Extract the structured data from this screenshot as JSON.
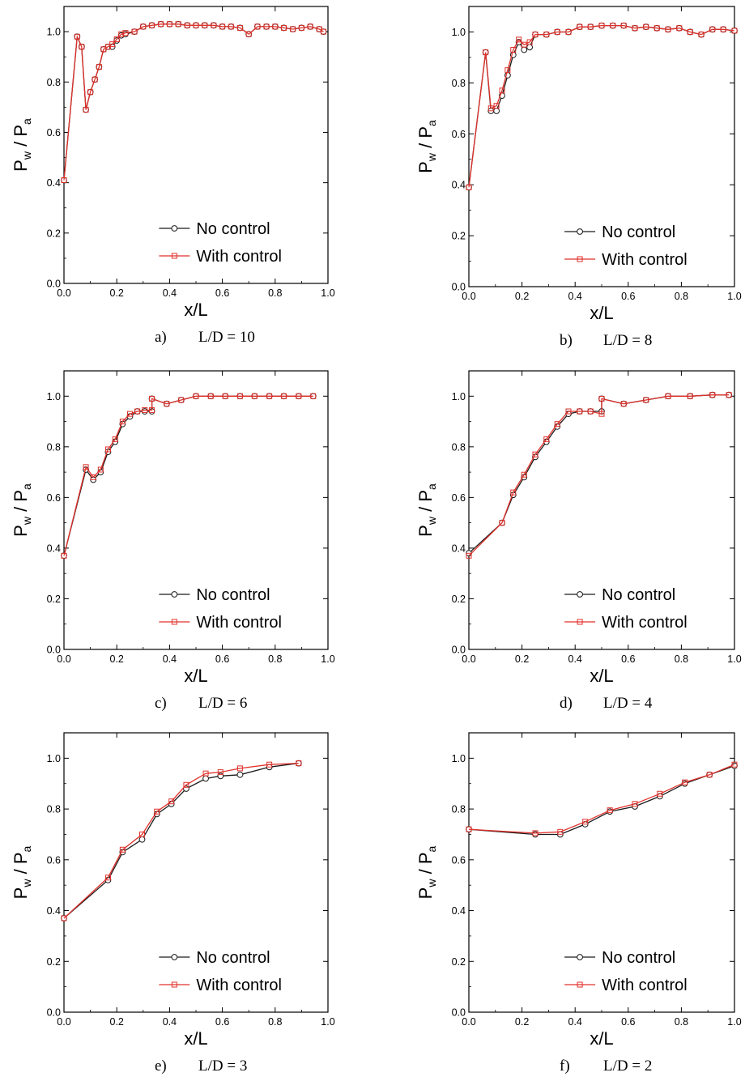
{
  "chart_data": [
    {
      "type": "line",
      "caption_letter": "a)",
      "caption_text": "L/D = 10",
      "xlabel": "x/L",
      "ylabel_main": "P",
      "ylabel_sub1": "w",
      "ylabel_sep": " / ",
      "ylabel_main2": "P",
      "ylabel_sub2": "a",
      "xlim": [
        0,
        1
      ],
      "ylim": [
        0,
        1.1
      ],
      "xticks": [
        "0.0",
        "0.2",
        "0.4",
        "0.6",
        "0.8",
        "1.0"
      ],
      "yticks": [
        "0.0",
        "0.2",
        "0.4",
        "0.6",
        "0.8",
        "1.0"
      ],
      "legend": [
        "No control",
        "With control"
      ],
      "series": [
        {
          "name": "No control",
          "x": [
            0.0,
            0.05,
            0.067,
            0.083,
            0.1,
            0.117,
            0.133,
            0.15,
            0.167,
            0.183,
            0.2,
            0.217,
            0.233,
            0.267,
            0.3,
            0.333,
            0.367,
            0.4,
            0.433,
            0.467,
            0.5,
            0.533,
            0.567,
            0.6,
            0.633,
            0.667,
            0.7,
            0.733,
            0.767,
            0.8,
            0.833,
            0.867,
            0.9,
            0.933,
            0.967,
            0.983
          ],
          "y": [
            0.41,
            0.98,
            0.94,
            0.69,
            0.76,
            0.81,
            0.86,
            0.93,
            0.94,
            0.94,
            0.965,
            0.985,
            0.99,
            1.0,
            1.02,
            1.025,
            1.03,
            1.03,
            1.03,
            1.025,
            1.025,
            1.025,
            1.025,
            1.02,
            1.02,
            1.015,
            0.99,
            1.02,
            1.02,
            1.02,
            1.015,
            1.01,
            1.015,
            1.02,
            1.01,
            1.0
          ]
        },
        {
          "name": "With control",
          "x": [
            0.0,
            0.05,
            0.067,
            0.083,
            0.1,
            0.117,
            0.133,
            0.15,
            0.167,
            0.183,
            0.2,
            0.217,
            0.233,
            0.267,
            0.3,
            0.333,
            0.367,
            0.4,
            0.433,
            0.467,
            0.5,
            0.533,
            0.567,
            0.6,
            0.633,
            0.667,
            0.7,
            0.733,
            0.767,
            0.8,
            0.833,
            0.867,
            0.9,
            0.933,
            0.967,
            0.983
          ],
          "y": [
            0.41,
            0.98,
            0.94,
            0.69,
            0.76,
            0.81,
            0.86,
            0.93,
            0.94,
            0.95,
            0.97,
            0.99,
            0.995,
            1.0,
            1.02,
            1.025,
            1.03,
            1.03,
            1.03,
            1.025,
            1.025,
            1.025,
            1.025,
            1.02,
            1.02,
            1.015,
            0.99,
            1.02,
            1.02,
            1.02,
            1.015,
            1.01,
            1.015,
            1.02,
            1.01,
            1.0
          ]
        }
      ]
    },
    {
      "type": "line",
      "caption_letter": "b)",
      "caption_text": "L/D = 8",
      "xlabel": "x/L",
      "ylabel_main": "P",
      "ylabel_sub1": "w",
      "ylabel_sep": " / ",
      "ylabel_main2": "P",
      "ylabel_sub2": "a",
      "xlim": [
        0,
        1
      ],
      "ylim": [
        0,
        1.1
      ],
      "xticks": [
        "0.0",
        "0.2",
        "0.4",
        "0.6",
        "0.8",
        "1.0"
      ],
      "yticks": [
        "0.0",
        "0.2",
        "0.4",
        "0.6",
        "0.8",
        "1.0"
      ],
      "legend": [
        "No control",
        "With control"
      ],
      "series": [
        {
          "name": "No control",
          "x": [
            0.0,
            0.063,
            0.083,
            0.104,
            0.125,
            0.146,
            0.167,
            0.188,
            0.208,
            0.229,
            0.25,
            0.292,
            0.333,
            0.375,
            0.417,
            0.458,
            0.5,
            0.542,
            0.583,
            0.625,
            0.667,
            0.708,
            0.75,
            0.792,
            0.833,
            0.875,
            0.917,
            0.958,
            1.0
          ],
          "y": [
            0.39,
            0.92,
            0.69,
            0.69,
            0.75,
            0.83,
            0.91,
            0.96,
            0.93,
            0.94,
            0.99,
            0.99,
            1.0,
            1.0,
            1.02,
            1.02,
            1.025,
            1.025,
            1.025,
            1.015,
            1.02,
            1.015,
            1.01,
            1.015,
            1.0,
            0.99,
            1.01,
            1.01,
            1.005
          ]
        },
        {
          "name": "With control",
          "x": [
            0.0,
            0.063,
            0.083,
            0.104,
            0.125,
            0.146,
            0.167,
            0.188,
            0.208,
            0.229,
            0.25,
            0.292,
            0.333,
            0.375,
            0.417,
            0.458,
            0.5,
            0.542,
            0.583,
            0.625,
            0.667,
            0.708,
            0.75,
            0.792,
            0.833,
            0.875,
            0.917,
            0.958,
            1.0
          ],
          "y": [
            0.39,
            0.92,
            0.7,
            0.71,
            0.77,
            0.85,
            0.93,
            0.97,
            0.95,
            0.96,
            0.99,
            0.99,
            1.0,
            1.0,
            1.02,
            1.02,
            1.025,
            1.025,
            1.025,
            1.015,
            1.02,
            1.015,
            1.01,
            1.015,
            1.0,
            0.99,
            1.01,
            1.01,
            1.005
          ]
        }
      ]
    },
    {
      "type": "line",
      "caption_letter": "c)",
      "caption_text": "L/D = 6",
      "xlabel": "x/L",
      "ylabel_main": "P",
      "ylabel_sub1": "w",
      "ylabel_sep": " / ",
      "ylabel_main2": "P",
      "ylabel_sub2": "a",
      "xlim": [
        0,
        1
      ],
      "ylim": [
        0,
        1.1
      ],
      "xticks": [
        "0.0",
        "0.2",
        "0.4",
        "0.6",
        "0.8",
        "1.0"
      ],
      "yticks": [
        "0.0",
        "0.2",
        "0.4",
        "0.6",
        "0.8",
        "1.0"
      ],
      "legend": [
        "No control",
        "With control"
      ],
      "series": [
        {
          "name": "No control",
          "x": [
            0.0,
            0.083,
            0.111,
            0.139,
            0.167,
            0.194,
            0.222,
            0.25,
            0.278,
            0.306,
            0.333,
            0.333,
            0.389,
            0.444,
            0.5,
            0.556,
            0.611,
            0.667,
            0.722,
            0.778,
            0.833,
            0.889,
            0.944
          ],
          "y": [
            0.37,
            0.71,
            0.67,
            0.7,
            0.78,
            0.82,
            0.89,
            0.92,
            0.94,
            0.94,
            0.94,
            0.99,
            0.97,
            0.985,
            1.0,
            1.0,
            1.0,
            1.0,
            1.0,
            1.0,
            1.0,
            1.0,
            1.0
          ]
        },
        {
          "name": "With control",
          "x": [
            0.0,
            0.083,
            0.111,
            0.139,
            0.167,
            0.194,
            0.222,
            0.25,
            0.278,
            0.306,
            0.333,
            0.333,
            0.389,
            0.444,
            0.5,
            0.556,
            0.611,
            0.667,
            0.722,
            0.778,
            0.833,
            0.889,
            0.944
          ],
          "y": [
            0.37,
            0.72,
            0.68,
            0.71,
            0.79,
            0.83,
            0.9,
            0.93,
            0.94,
            0.945,
            0.945,
            0.99,
            0.97,
            0.985,
            1.0,
            1.0,
            1.0,
            1.0,
            1.0,
            1.0,
            1.0,
            1.0,
            1.0
          ]
        }
      ]
    },
    {
      "type": "line",
      "caption_letter": "d)",
      "caption_text": "L/D = 4",
      "xlabel": "x/L",
      "ylabel_main": "P",
      "ylabel_sub1": "w",
      "ylabel_sep": " / ",
      "ylabel_main2": "P",
      "ylabel_sub2": "a",
      "xlim": [
        0,
        1
      ],
      "ylim": [
        0,
        1.1
      ],
      "xticks": [
        "0.0",
        "0.2",
        "0.4",
        "0.6",
        "0.8",
        "1.0"
      ],
      "yticks": [
        "0.0",
        "0.2",
        "0.4",
        "0.6",
        "0.8",
        "1.0"
      ],
      "legend": [
        "No control",
        "With control"
      ],
      "series": [
        {
          "name": "No control",
          "x": [
            0.0,
            0.125,
            0.167,
            0.208,
            0.25,
            0.292,
            0.333,
            0.375,
            0.417,
            0.458,
            0.5,
            0.5,
            0.583,
            0.667,
            0.75,
            0.833,
            0.917,
            0.979
          ],
          "y": [
            0.38,
            0.5,
            0.61,
            0.68,
            0.76,
            0.82,
            0.88,
            0.93,
            0.94,
            0.94,
            0.94,
            0.99,
            0.97,
            0.985,
            1.0,
            1.0,
            1.005,
            1.005
          ]
        },
        {
          "name": "With control",
          "x": [
            0.0,
            0.125,
            0.167,
            0.208,
            0.25,
            0.292,
            0.333,
            0.375,
            0.417,
            0.458,
            0.5,
            0.5,
            0.583,
            0.667,
            0.75,
            0.833,
            0.917,
            0.979
          ],
          "y": [
            0.37,
            0.5,
            0.62,
            0.69,
            0.77,
            0.83,
            0.89,
            0.94,
            0.94,
            0.94,
            0.93,
            0.99,
            0.97,
            0.985,
            1.0,
            1.0,
            1.005,
            1.005
          ]
        }
      ]
    },
    {
      "type": "line",
      "caption_letter": "e)",
      "caption_text": "L/D = 3",
      "xlabel": "x/L",
      "ylabel_main": "P",
      "ylabel_sub1": "w",
      "ylabel_sep": " / ",
      "ylabel_main2": "P",
      "ylabel_sub2": "a",
      "xlim": [
        0,
        1
      ],
      "ylim": [
        0,
        1.1
      ],
      "xticks": [
        "0.0",
        "0.2",
        "0.4",
        "0.6",
        "0.8",
        "1.0"
      ],
      "yticks": [
        "0.0",
        "0.2",
        "0.4",
        "0.6",
        "0.8",
        "1.0"
      ],
      "legend": [
        "No control",
        "With control"
      ],
      "series": [
        {
          "name": "No control",
          "x": [
            0.0,
            0.167,
            0.222,
            0.296,
            0.352,
            0.407,
            0.463,
            0.537,
            0.593,
            0.667,
            0.778,
            0.889
          ],
          "y": [
            0.37,
            0.52,
            0.63,
            0.68,
            0.78,
            0.82,
            0.88,
            0.92,
            0.93,
            0.935,
            0.965,
            0.98
          ]
        },
        {
          "name": "With control",
          "x": [
            0.0,
            0.167,
            0.222,
            0.296,
            0.352,
            0.407,
            0.463,
            0.537,
            0.593,
            0.667,
            0.778,
            0.889
          ],
          "y": [
            0.37,
            0.53,
            0.64,
            0.7,
            0.79,
            0.83,
            0.895,
            0.94,
            0.945,
            0.96,
            0.975,
            0.98
          ]
        }
      ]
    },
    {
      "type": "line",
      "caption_letter": "f)",
      "caption_text": "L/D = 2",
      "xlabel": "x/L",
      "ylabel_main": "P",
      "ylabel_sub1": "w",
      "ylabel_sep": " / ",
      "ylabel_main2": "P",
      "ylabel_sub2": "a",
      "xlim": [
        0,
        1
      ],
      "ylim": [
        0,
        1.1
      ],
      "xticks": [
        "0.0",
        "0.2",
        "0.4",
        "0.6",
        "0.8",
        "1.0"
      ],
      "yticks": [
        "0.0",
        "0.2",
        "0.4",
        "0.6",
        "0.8",
        "1.0"
      ],
      "legend": [
        "No control",
        "With control"
      ],
      "series": [
        {
          "name": "No control",
          "x": [
            0.0,
            0.25,
            0.344,
            0.438,
            0.531,
            0.625,
            0.719,
            0.813,
            0.906,
            1.0
          ],
          "y": [
            0.72,
            0.7,
            0.7,
            0.74,
            0.79,
            0.81,
            0.85,
            0.9,
            0.935,
            0.97
          ]
        },
        {
          "name": "With control",
          "x": [
            0.0,
            0.25,
            0.344,
            0.438,
            0.531,
            0.625,
            0.719,
            0.813,
            0.906,
            1.0
          ],
          "y": [
            0.72,
            0.705,
            0.71,
            0.75,
            0.795,
            0.82,
            0.86,
            0.905,
            0.935,
            0.975
          ]
        }
      ]
    }
  ],
  "colors": {
    "no_control": "#1a1a1a",
    "with_control": "#e0312b"
  }
}
